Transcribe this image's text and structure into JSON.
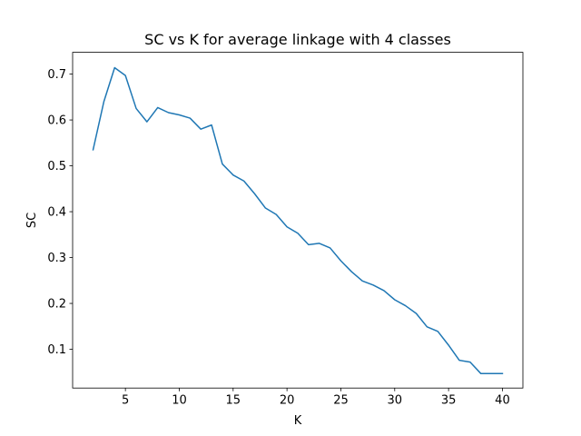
{
  "chart_data": {
    "type": "line",
    "title": "SC vs K for average linkage with 4 classes",
    "xlabel": "K",
    "ylabel": "SC",
    "xlim": [
      0.1,
      41.9
    ],
    "ylim": [
      0.0155,
      0.7475
    ],
    "grid": false,
    "x_ticks": [
      5,
      10,
      15,
      20,
      25,
      30,
      35,
      40
    ],
    "y_ticks": [
      0.1,
      0.2,
      0.3,
      0.4,
      0.5,
      0.6,
      0.7
    ],
    "series": [
      {
        "color": "#1f77b4",
        "x": [
          2,
          3,
          4,
          5,
          6,
          7,
          8,
          9,
          10,
          11,
          12,
          13,
          14,
          15,
          16,
          17,
          18,
          19,
          20,
          21,
          22,
          23,
          24,
          25,
          26,
          27,
          28,
          29,
          30,
          31,
          32,
          33,
          34,
          35,
          36,
          37,
          38,
          39,
          40
        ],
        "values": [
          0.535,
          0.64,
          0.714,
          0.697,
          0.625,
          0.596,
          0.627,
          0.616,
          0.611,
          0.604,
          0.58,
          0.589,
          0.504,
          0.48,
          0.467,
          0.439,
          0.408,
          0.394,
          0.367,
          0.353,
          0.328,
          0.331,
          0.321,
          0.293,
          0.269,
          0.249,
          0.24,
          0.228,
          0.208,
          0.195,
          0.178,
          0.149,
          0.139,
          0.109,
          0.076,
          0.072,
          0.047,
          0.047,
          0.047
        ]
      }
    ]
  }
}
